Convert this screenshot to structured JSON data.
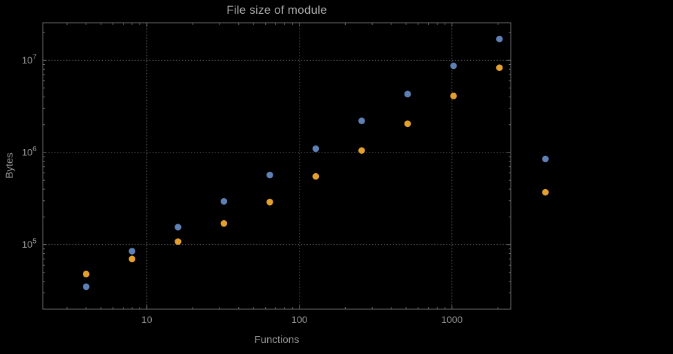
{
  "colors": {
    "background": "#000000",
    "frame": "#6f6f6f",
    "grid": "#8a8a8a",
    "text": "#969696",
    "title_text": "#a9a9a9",
    "series1": "#5e81b5",
    "series2": "#e3a02d"
  },
  "chart_data": {
    "type": "scatter",
    "title": "File size of module",
    "xlabel": "Functions",
    "ylabel": "Bytes",
    "xscale": "log",
    "yscale": "log",
    "xlim": [
      2.08,
      2430
    ],
    "ylim": [
      20000,
      25500000
    ],
    "grid": "dotted-major-decades",
    "legend": "none",
    "x": [
      4,
      8,
      16,
      32,
      64,
      128,
      256,
      512,
      1024,
      2048,
      4096
    ],
    "series": [
      {
        "name": "blue",
        "color": "#5e81b5",
        "values": [
          35000,
          85000,
          155000,
          295000,
          570000,
          1100000,
          2200000,
          4300000,
          8700000,
          17000000,
          850000
        ]
      },
      {
        "name": "orange",
        "color": "#e3a02d",
        "values": [
          48000,
          70000,
          108000,
          170000,
          290000,
          550000,
          1050000,
          2050000,
          4100000,
          8300000,
          370000
        ]
      }
    ],
    "x_ticks": [
      {
        "label": "10",
        "value": 10
      },
      {
        "label": "100",
        "value": 100
      },
      {
        "label": "1000",
        "value": 1000
      }
    ],
    "y_ticks": [
      {
        "mantissa": "10",
        "exponent": "5",
        "value": 100000
      },
      {
        "mantissa": "10",
        "exponent": "6",
        "value": 1000000
      },
      {
        "mantissa": "10",
        "exponent": "7",
        "value": 10000000
      }
    ]
  }
}
